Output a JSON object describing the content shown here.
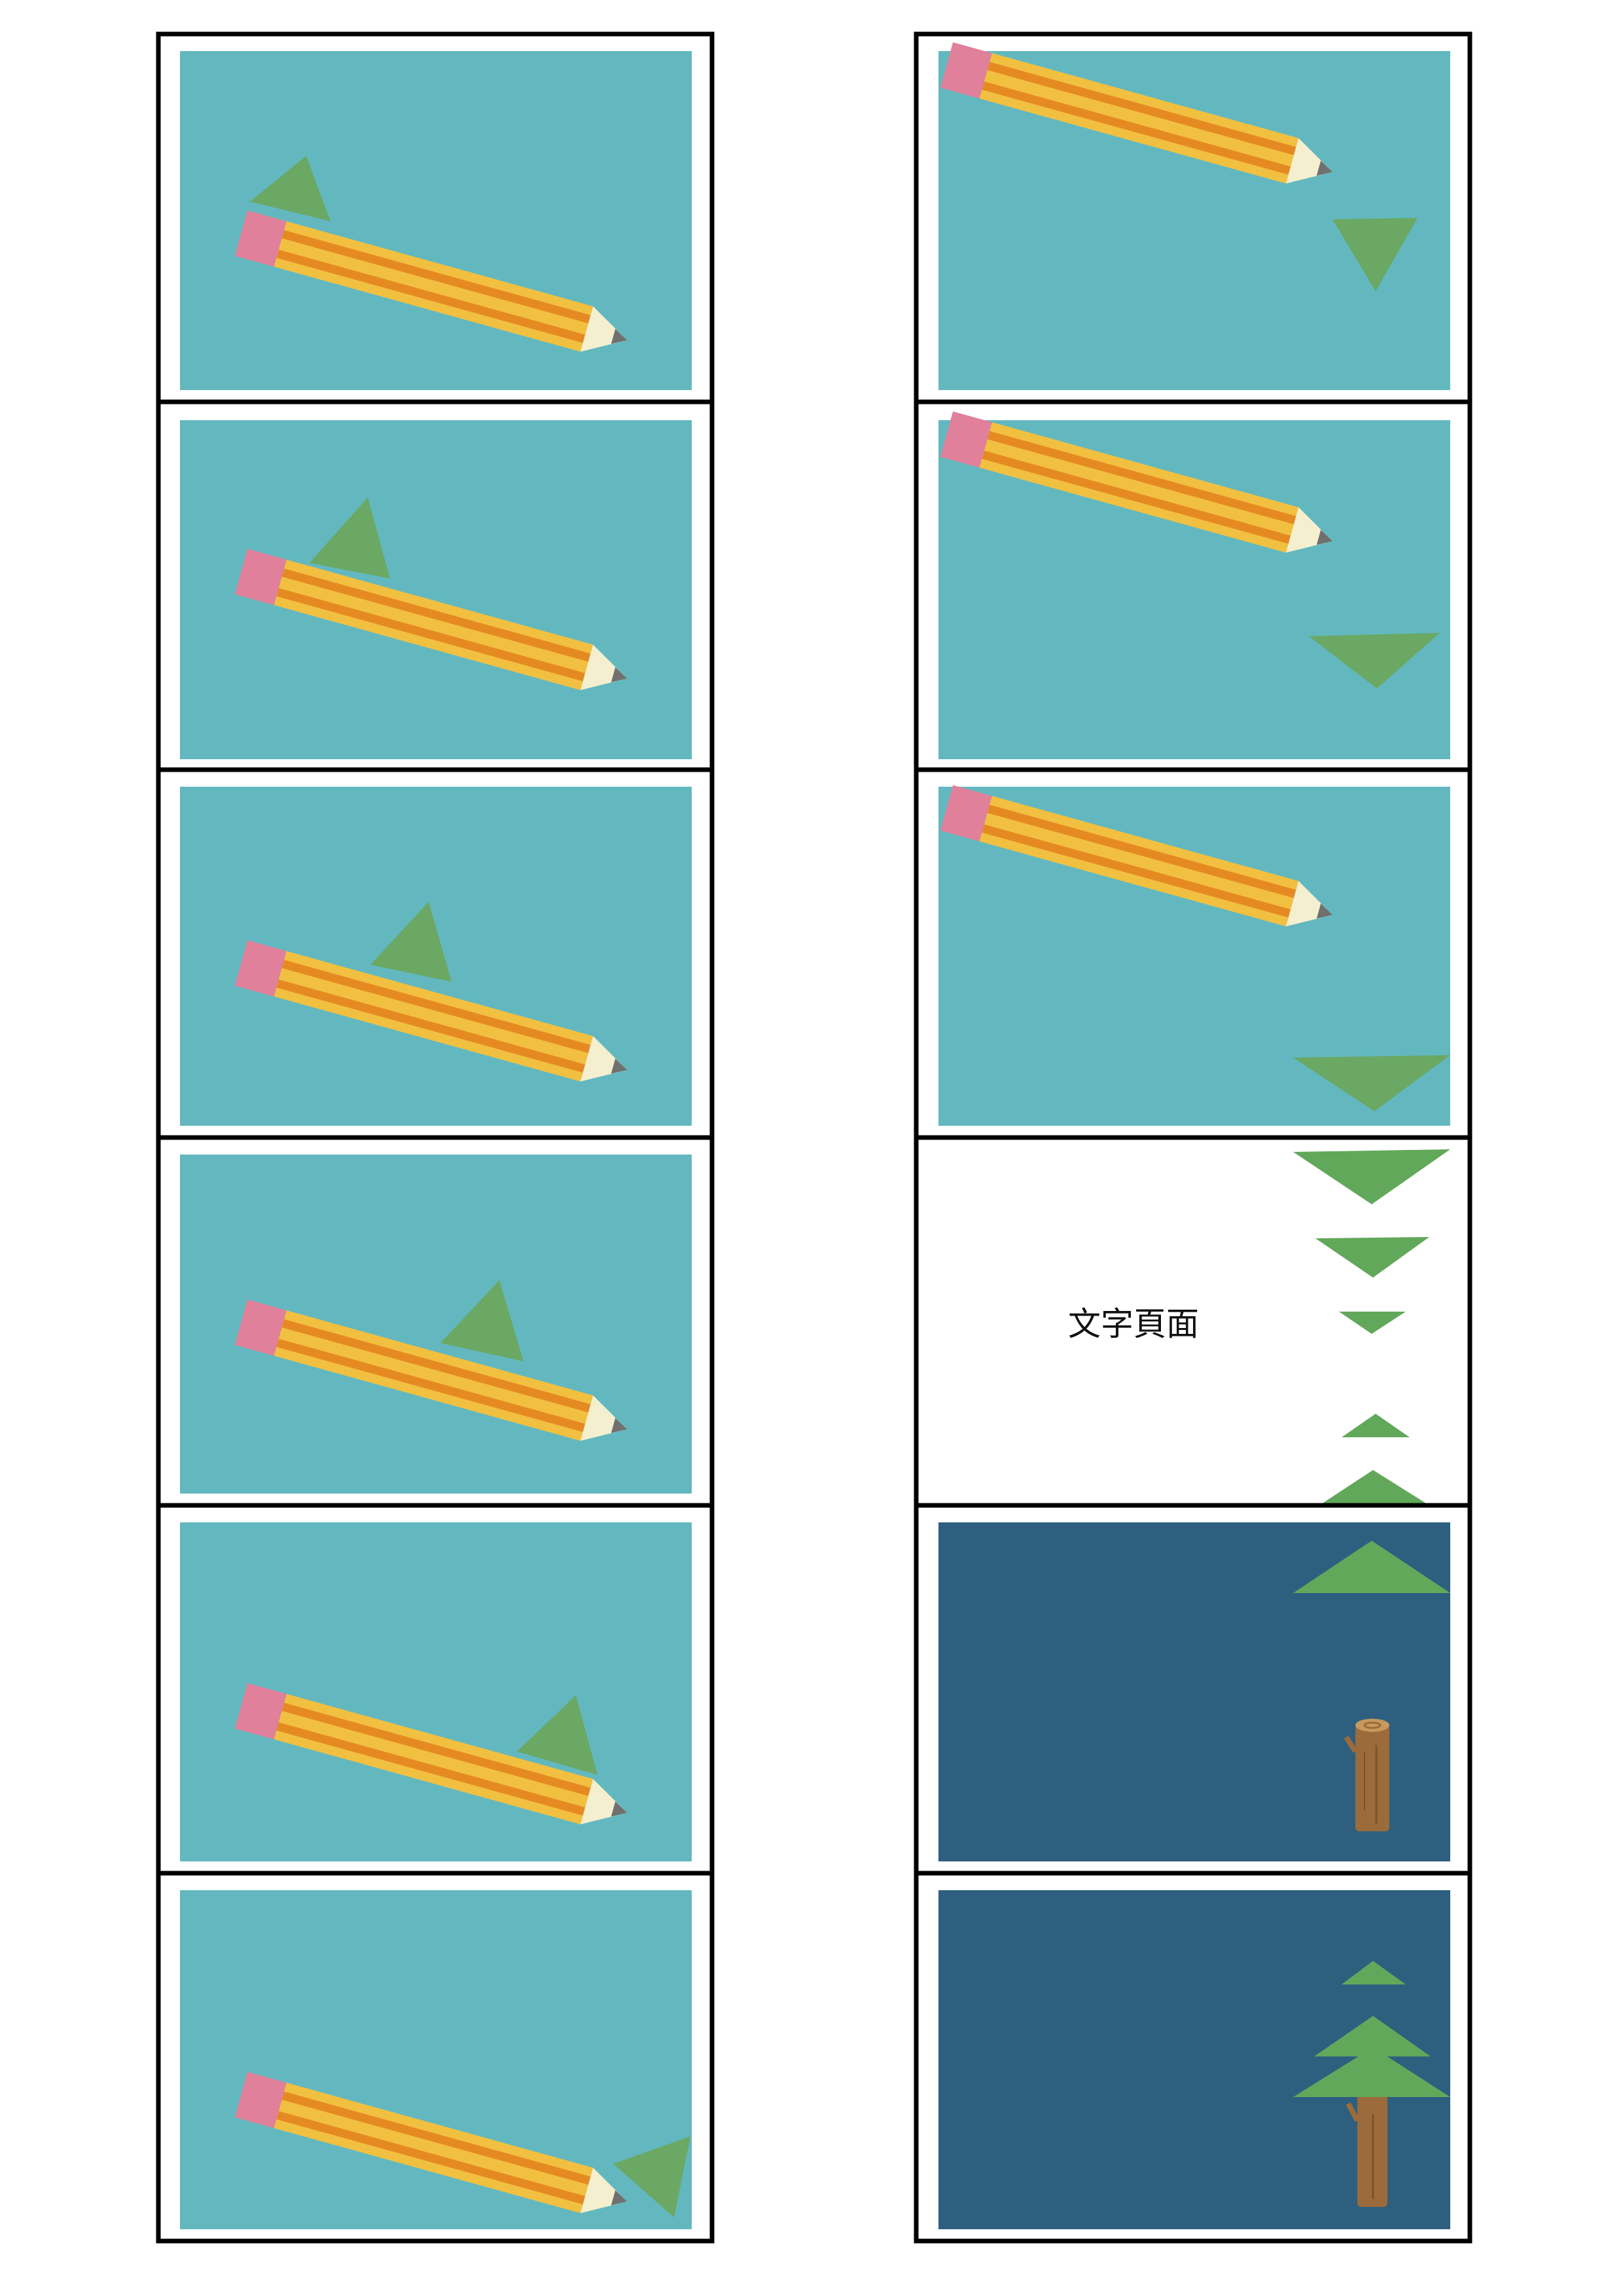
{
  "page": {
    "background": "#ffffff",
    "border_color": "#000000"
  },
  "colors": {
    "sky": "#63b8bf",
    "night": "#2e5f7f",
    "leaf": "#6aa864",
    "leaf_bright": "#62a85a",
    "pencil_body": "#f2c040",
    "pencil_stripe": "#e58a23",
    "pencil_eraser": "#e0809a",
    "pencil_wood": "#f4efcf",
    "pencil_lead": "#707070",
    "trunk": "#9b6b3b",
    "trunk_ring": "#c79a5c"
  },
  "storyboard": {
    "left_column": [
      {
        "frame": 1,
        "background": "sky",
        "icons": [
          "pencil-icon",
          "leaf-triangle-icon"
        ]
      },
      {
        "frame": 2,
        "background": "sky",
        "icons": [
          "pencil-icon",
          "leaf-triangle-icon"
        ]
      },
      {
        "frame": 3,
        "background": "sky",
        "icons": [
          "pencil-icon",
          "leaf-triangle-icon"
        ]
      },
      {
        "frame": 4,
        "background": "sky",
        "icons": [
          "pencil-icon",
          "leaf-triangle-icon"
        ]
      },
      {
        "frame": 5,
        "background": "sky",
        "icons": [
          "pencil-icon",
          "leaf-triangle-icon"
        ]
      },
      {
        "frame": 6,
        "background": "sky",
        "icons": [
          "pencil-icon",
          "leaf-triangle-icon"
        ]
      }
    ],
    "right_column": [
      {
        "frame": 7,
        "background": "sky",
        "icons": [
          "pencil-icon",
          "leaf-triangle-icon"
        ]
      },
      {
        "frame": 8,
        "background": "sky",
        "icons": [
          "pencil-icon",
          "leaf-triangle-icon"
        ]
      },
      {
        "frame": 9,
        "background": "sky",
        "icons": [
          "pencil-icon",
          "leaf-triangle-icon"
        ]
      },
      {
        "frame": 10,
        "background": "white",
        "caption": "文字頁面",
        "icons": [
          "leaf-triangle-icon"
        ]
      },
      {
        "frame": 11,
        "background": "night",
        "icons": [
          "leaf-triangle-icon",
          "log-icon"
        ]
      },
      {
        "frame": 12,
        "background": "night",
        "icons": [
          "pine-tree-icon"
        ]
      }
    ]
  }
}
